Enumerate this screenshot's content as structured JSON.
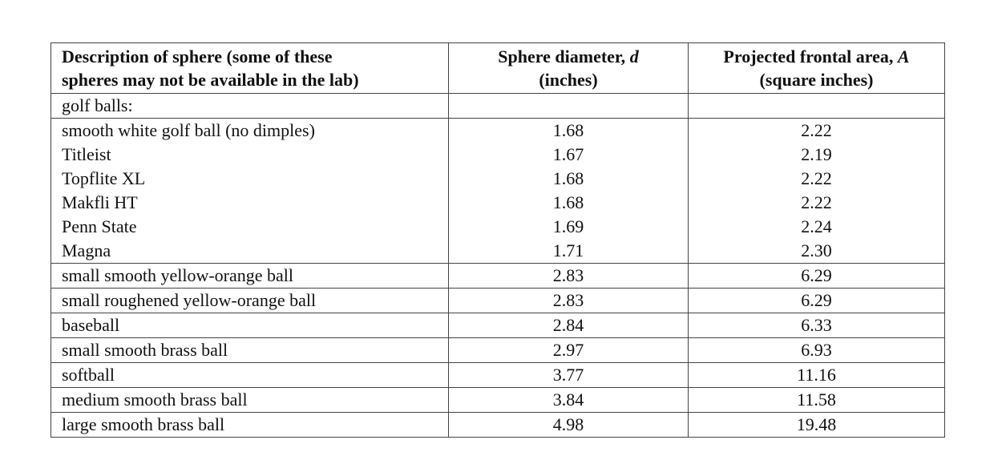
{
  "table": {
    "headers": {
      "description": [
        "Description of sphere (some of these",
        "spheres may not be available in the lab)"
      ],
      "diameter": [
        "Sphere diameter, d",
        "(inches)"
      ],
      "area": [
        "Projected frontal area, A",
        "(square inches)"
      ]
    },
    "group_label": "golf balls:",
    "golf_rows": [
      {
        "desc": "smooth white golf ball (no dimples)",
        "d": "1.68",
        "a": "2.22"
      },
      {
        "desc": "Titleist",
        "d": "1.67",
        "a": "2.19"
      },
      {
        "desc": "Topflite XL",
        "d": "1.68",
        "a": "2.22"
      },
      {
        "desc": "Makfli HT",
        "d": "1.68",
        "a": "2.22"
      },
      {
        "desc": "Penn State",
        "d": "1.69",
        "a": "2.24"
      },
      {
        "desc": "Magna",
        "d": "1.71",
        "a": "2.30"
      }
    ],
    "other_rows": [
      {
        "desc": "small smooth yellow-orange ball",
        "d": "2.83",
        "a": "6.29"
      },
      {
        "desc": "small roughened yellow-orange ball",
        "d": "2.83",
        "a": "6.29"
      },
      {
        "desc": "baseball",
        "d": "2.84",
        "a": "6.33"
      },
      {
        "desc": "small smooth brass ball",
        "d": "2.97",
        "a": "6.93"
      },
      {
        "desc": "softball",
        "d": "3.77",
        "a": "11.16"
      },
      {
        "desc": "medium smooth brass ball",
        "d": "3.84",
        "a": "11.58"
      },
      {
        "desc": "large smooth brass ball",
        "d": "4.98",
        "a": "19.48"
      }
    ]
  }
}
